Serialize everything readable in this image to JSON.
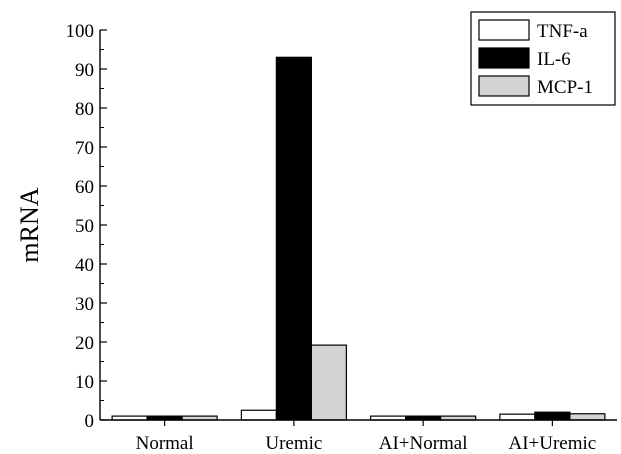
{
  "chart_data": {
    "type": "bar",
    "title": "",
    "xlabel": "",
    "ylabel": "mRNA",
    "ylim": [
      0,
      100
    ],
    "yticks": [
      0,
      10,
      20,
      30,
      40,
      50,
      60,
      70,
      80,
      90,
      100
    ],
    "categories": [
      "Normal",
      "Uremic",
      "AI+Normal",
      "AI+Uremic"
    ],
    "series": [
      {
        "name": "TNF-a",
        "color": "#ffffff",
        "values": [
          1,
          2.5,
          1,
          1.5
        ]
      },
      {
        "name": "IL-6",
        "color": "#000000",
        "values": [
          1,
          93,
          1,
          2
        ]
      },
      {
        "name": "MCP-1",
        "color": "#d3d3d3",
        "values": [
          1,
          19.2,
          1,
          1.6
        ]
      }
    ],
    "legend_position": "top-right",
    "grid": false
  }
}
